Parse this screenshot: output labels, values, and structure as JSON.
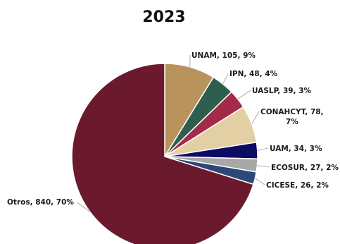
{
  "chart_data": {
    "type": "pie",
    "title": "2023",
    "series": [
      {
        "name": "UNAM",
        "value": 105,
        "percent": "9%",
        "color": "#b8935c",
        "label": "UNAM, 105, 9%"
      },
      {
        "name": "IPN",
        "value": 48,
        "percent": "4%",
        "color": "#2e5e4e",
        "label": "IPN, 48, 4%"
      },
      {
        "name": "UASLP",
        "value": 39,
        "percent": "3%",
        "color": "#a32b4a",
        "label": "UASLP, 39, 3%"
      },
      {
        "name": "CONAHCYT",
        "value": 78,
        "percent": "7%",
        "color": "#e3cfa4",
        "label": "CONAHCYT, 78, 7%"
      },
      {
        "name": "UAM",
        "value": 34,
        "percent": "3%",
        "color": "#0c0c63",
        "label": "UAM, 34, 3%"
      },
      {
        "name": "ECOSUR",
        "value": 27,
        "percent": "2%",
        "color": "#a8a8a8",
        "label": "ECOSUR, 27, 2%"
      },
      {
        "name": "CICESE",
        "value": 26,
        "percent": "2%",
        "color": "#2c4878",
        "label": "CICESE, 26, 2%"
      },
      {
        "name": "Otros",
        "value": 840,
        "percent": "70%",
        "color": "#6b1a2e",
        "label": "Otros, 840, 70%"
      }
    ],
    "start_angle": "12 o'clock",
    "direction": "clockwise",
    "legend": "none (slice labels)"
  }
}
